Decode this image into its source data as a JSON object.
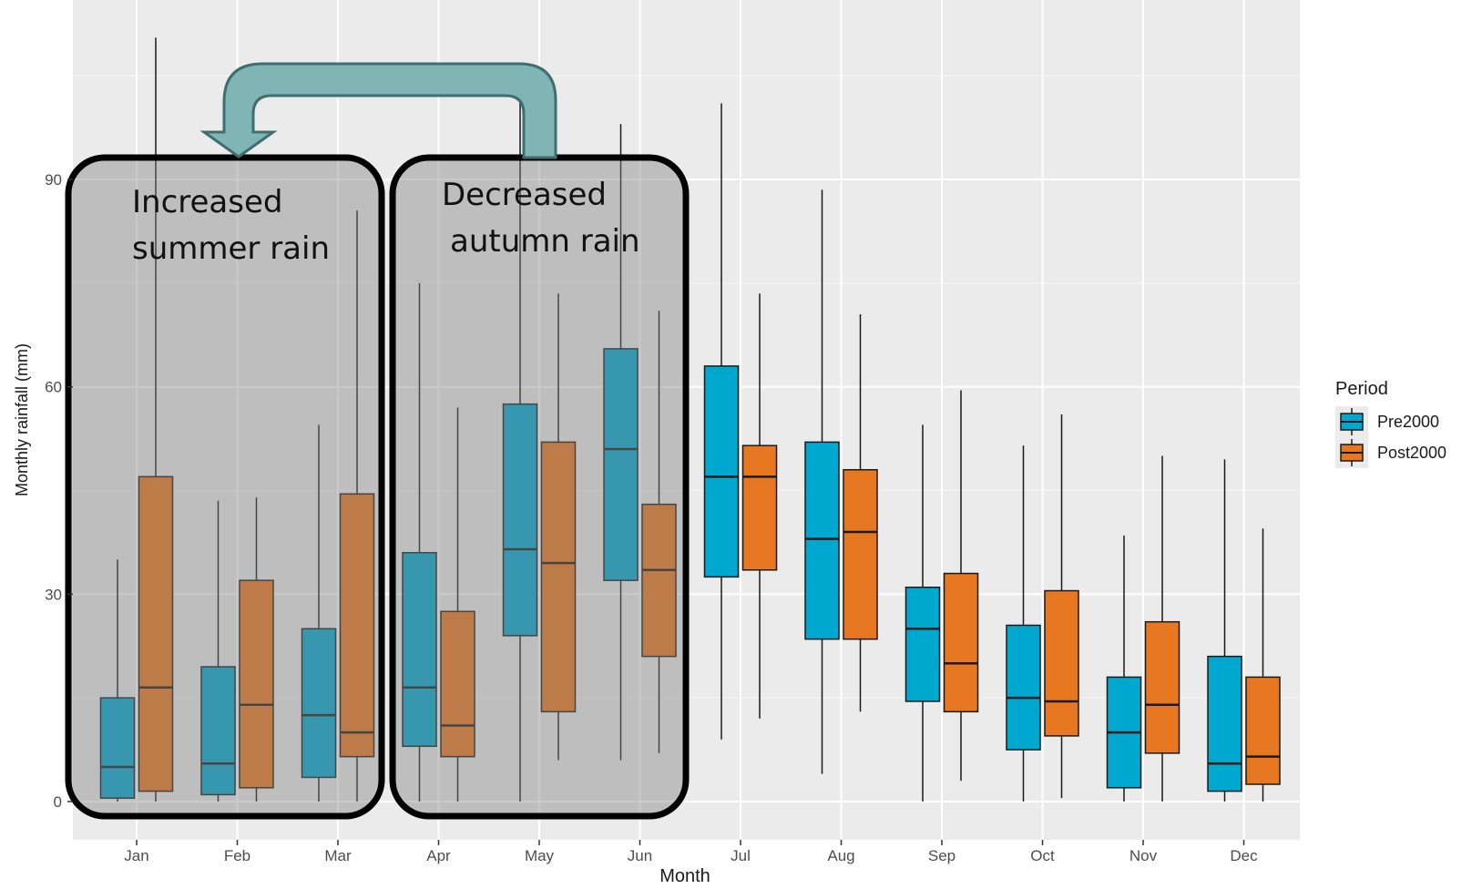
{
  "chart_data": {
    "type": "boxplot",
    "xlabel": "Month",
    "ylabel": "Monthly rainfall (mm)",
    "categories": [
      "Jan",
      "Feb",
      "Mar",
      "Apr",
      "May",
      "Jun",
      "Jul",
      "Aug",
      "Sep",
      "Oct",
      "Nov",
      "Dec"
    ],
    "yticks": [
      0,
      30,
      60,
      90
    ],
    "ylim": [
      -5,
      115
    ],
    "grid": true,
    "legend": {
      "title": "Period",
      "placement": "right"
    },
    "series": [
      {
        "name": "Pre2000",
        "color": "#00A8CF",
        "boxes": [
          {
            "min": 0,
            "q1": 0.5,
            "median": 5,
            "q3": 15,
            "max": 35
          },
          {
            "min": 0,
            "q1": 1,
            "median": 5.5,
            "q3": 19.5,
            "max": 43.5
          },
          {
            "min": 0,
            "q1": 3.5,
            "median": 12.5,
            "q3": 25,
            "max": 54.5
          },
          {
            "min": 0,
            "q1": 8,
            "median": 16.5,
            "q3": 36,
            "max": 75
          },
          {
            "min": 0,
            "q1": 24,
            "median": 36.5,
            "q3": 57.5,
            "max": 105
          },
          {
            "min": 6,
            "q1": 32,
            "median": 51,
            "q3": 65.5,
            "max": 98
          },
          {
            "min": 9,
            "q1": 32.5,
            "median": 47,
            "q3": 63,
            "max": 101
          },
          {
            "min": 4,
            "q1": 23.5,
            "median": 38,
            "q3": 52,
            "max": 88.5
          },
          {
            "min": 0,
            "q1": 14.5,
            "median": 25,
            "q3": 31,
            "max": 54.5
          },
          {
            "min": 0,
            "q1": 7.5,
            "median": 15,
            "q3": 25.5,
            "max": 51.5
          },
          {
            "min": 0,
            "q1": 2,
            "median": 10,
            "q3": 18,
            "max": 38.5
          },
          {
            "min": 0,
            "q1": 1.5,
            "median": 5.5,
            "q3": 21,
            "max": 49.5
          }
        ]
      },
      {
        "name": "Post2000",
        "color": "#E87722",
        "boxes": [
          {
            "min": 0,
            "q1": 1.5,
            "median": 16.5,
            "q3": 47,
            "max": 110.5
          },
          {
            "min": 0,
            "q1": 2,
            "median": 14,
            "q3": 32,
            "max": 44
          },
          {
            "min": 0,
            "q1": 6.5,
            "median": 10,
            "q3": 44.5,
            "max": 85.5
          },
          {
            "min": 0,
            "q1": 6.5,
            "median": 11,
            "q3": 27.5,
            "max": 57
          },
          {
            "min": 6,
            "q1": 13,
            "median": 34.5,
            "q3": 52,
            "max": 73.5
          },
          {
            "min": 7,
            "q1": 21,
            "median": 33.5,
            "q3": 43,
            "max": 71
          },
          {
            "min": 12,
            "q1": 33.5,
            "median": 47,
            "q3": 51.5,
            "max": 73.5
          },
          {
            "min": 13,
            "q1": 23.5,
            "median": 39,
            "q3": 48,
            "max": 70.5
          },
          {
            "min": 3,
            "q1": 13,
            "median": 20,
            "q3": 33,
            "max": 59.5
          },
          {
            "min": 0.5,
            "q1": 9.5,
            "median": 14.5,
            "q3": 30.5,
            "max": 56
          },
          {
            "min": 0,
            "q1": 7,
            "median": 14,
            "q3": 26,
            "max": 50
          },
          {
            "min": 0,
            "q1": 2.5,
            "median": 6.5,
            "q3": 18,
            "max": 39.5
          }
        ]
      }
    ],
    "annotations": [
      {
        "lines": [
          "Increased",
          "summer rain"
        ],
        "months": [
          "Jan",
          "Feb",
          "Mar"
        ]
      },
      {
        "lines": [
          "Decreased",
          "autumn rain"
        ],
        "months": [
          "Apr",
          "May",
          "Jun"
        ]
      }
    ],
    "arrow": {
      "from": "Jun",
      "to": "Jan",
      "color": "#7FB5B5"
    }
  }
}
